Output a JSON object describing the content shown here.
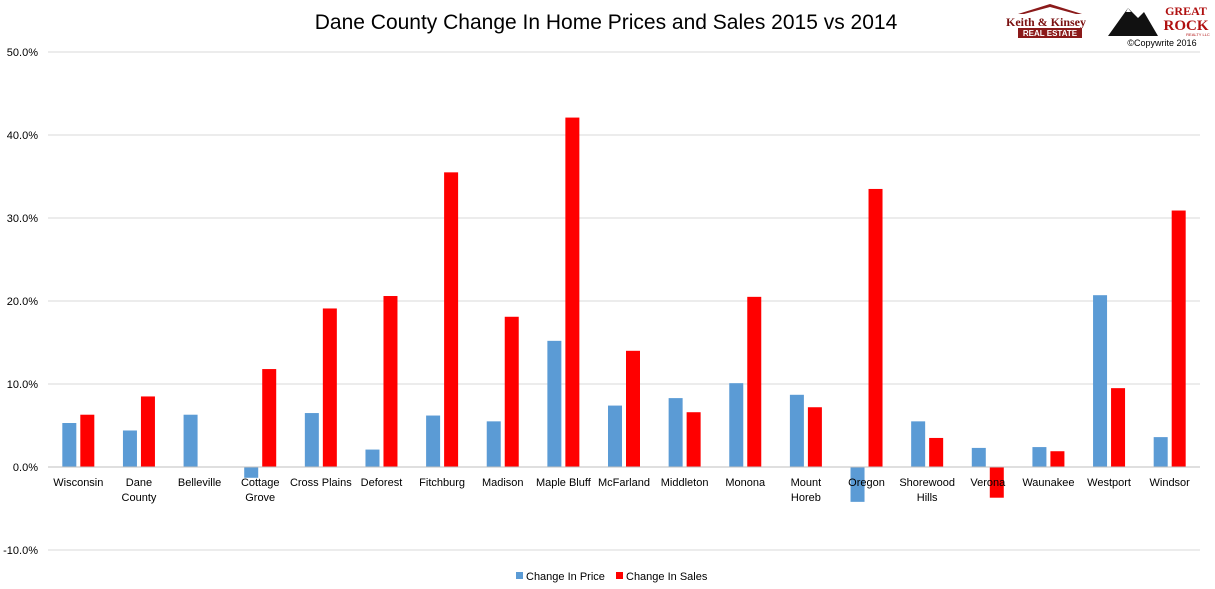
{
  "chart_data": {
    "type": "bar",
    "title": "Dane County Change In Home Prices and Sales 2015 vs 2014",
    "categories": [
      [
        "Wisconsin"
      ],
      [
        "Dane",
        "County"
      ],
      [
        "Belleville"
      ],
      [
        "Cottage",
        "Grove"
      ],
      [
        "Cross Plains"
      ],
      [
        "Deforest"
      ],
      [
        "Fitchburg"
      ],
      [
        "Madison"
      ],
      [
        "Maple Bluff"
      ],
      [
        "McFarland"
      ],
      [
        "Middleton"
      ],
      [
        "Monona"
      ],
      [
        "Mount",
        "Horeb"
      ],
      [
        "Oregon"
      ],
      [
        "Shorewood",
        "Hills"
      ],
      [
        "Verona"
      ],
      [
        "Waunakee"
      ],
      [
        "Westport"
      ],
      [
        "Windsor"
      ]
    ],
    "series": [
      {
        "name": "Change In Price",
        "color": "#5b9bd5",
        "values": [
          5.3,
          4.4,
          6.3,
          -1.3,
          6.5,
          2.1,
          6.2,
          5.5,
          15.2,
          7.4,
          8.3,
          10.1,
          8.7,
          -4.2,
          5.5,
          2.3,
          2.4,
          20.7,
          3.6
        ]
      },
      {
        "name": "Change In Sales",
        "color": "#ff0000",
        "values": [
          6.3,
          8.5,
          0,
          11.8,
          19.1,
          20.6,
          35.5,
          18.1,
          42.1,
          14.0,
          6.6,
          20.5,
          7.2,
          33.5,
          3.5,
          -3.7,
          1.9,
          9.5,
          30.9
        ]
      }
    ],
    "yticks": [
      "50.0%",
      "40.0%",
      "30.0%",
      "20.0%",
      "10.0%",
      "0.0%",
      "-10.0%"
    ],
    "ylim": [
      -10,
      50
    ],
    "grid": true,
    "legend": "bottom"
  },
  "logos": {
    "keith_kinsey": {
      "line1": "Keith & Kinsey",
      "line2": "REAL ESTATE"
    },
    "great_rock": {
      "line1": "GREAT",
      "line2": "ROCK",
      "line3": "REALTY LLC"
    },
    "copyright": "©Copywrite 2016"
  }
}
